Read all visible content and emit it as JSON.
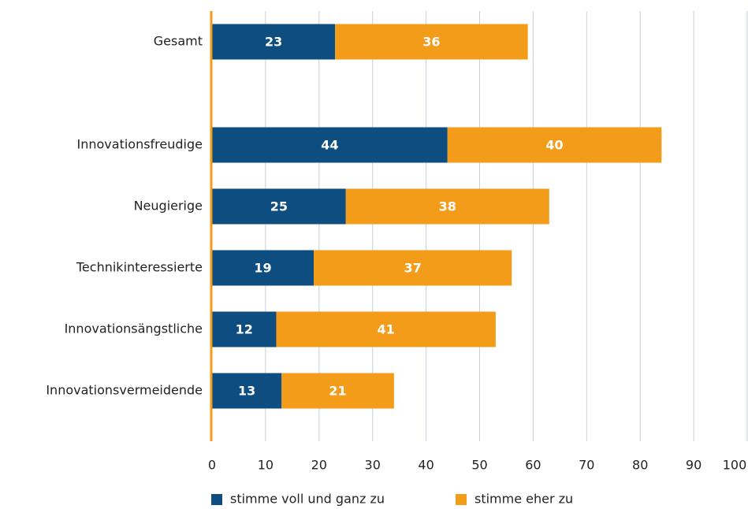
{
  "chart_data": {
    "type": "bar",
    "orientation": "horizontal",
    "stacked": true,
    "categories": [
      "Gesamt",
      "Innovationsfreudige",
      "Neugierige",
      "Technikinteressierte",
      "Innovationsängstliche",
      "Innovationsvermeidende"
    ],
    "series": [
      {
        "name": "stimme voll und ganz zu",
        "color": "#0e4d80",
        "values": [
          23,
          44,
          25,
          19,
          12,
          13
        ]
      },
      {
        "name": "stimme eher zu",
        "color": "#f39c1a",
        "values": [
          36,
          40,
          38,
          37,
          41,
          21
        ]
      }
    ],
    "xlim": [
      0,
      100
    ],
    "xticks": [
      0,
      10,
      20,
      30,
      40,
      50,
      60,
      70,
      80,
      90,
      100
    ],
    "grid": true,
    "legend": "bottom"
  }
}
